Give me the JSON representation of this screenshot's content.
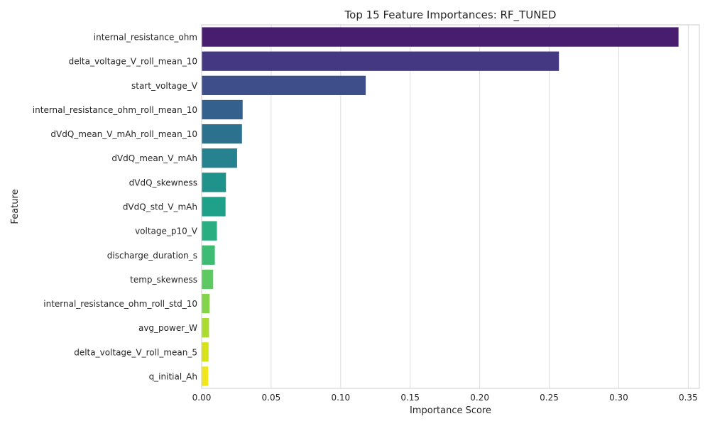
{
  "chart_data": {
    "type": "bar",
    "orientation": "horizontal",
    "title": "Top 15 Feature Importances: RF_TUNED",
    "xlabel": "Importance Score",
    "ylabel": "Feature",
    "xlim": [
      0,
      0.358
    ],
    "x_ticks": [
      "0.00",
      "0.05",
      "0.10",
      "0.15",
      "0.20",
      "0.25",
      "0.30",
      "0.35"
    ],
    "grid": true,
    "categories": [
      "internal_resistance_ohm",
      "delta_voltage_V_roll_mean_10",
      "start_voltage_V",
      "internal_resistance_ohm_roll_mean_10",
      "dVdQ_mean_V_mAh_roll_mean_10",
      "dVdQ_mean_V_mAh",
      "dVdQ_skewness",
      "dVdQ_std_V_mAh",
      "voltage_p10_V",
      "discharge_duration_s",
      "temp_skewness",
      "internal_resistance_ohm_roll_std_10",
      "avg_power_W",
      "delta_voltage_V_roll_mean_5",
      "q_initial_Ah"
    ],
    "values": [
      0.343,
      0.257,
      0.118,
      0.0295,
      0.029,
      0.0255,
      0.0175,
      0.0172,
      0.011,
      0.0095,
      0.0083,
      0.0057,
      0.0053,
      0.005,
      0.0047
    ],
    "colors": [
      "#481c6e",
      "#453882",
      "#3d4e8a",
      "#34608d",
      "#2c718e",
      "#26828e",
      "#20928c",
      "#1fa088",
      "#28ae80",
      "#3fbc73",
      "#5ec962",
      "#84d44b",
      "#addc30",
      "#d8e219",
      "#f1e51d"
    ]
  }
}
